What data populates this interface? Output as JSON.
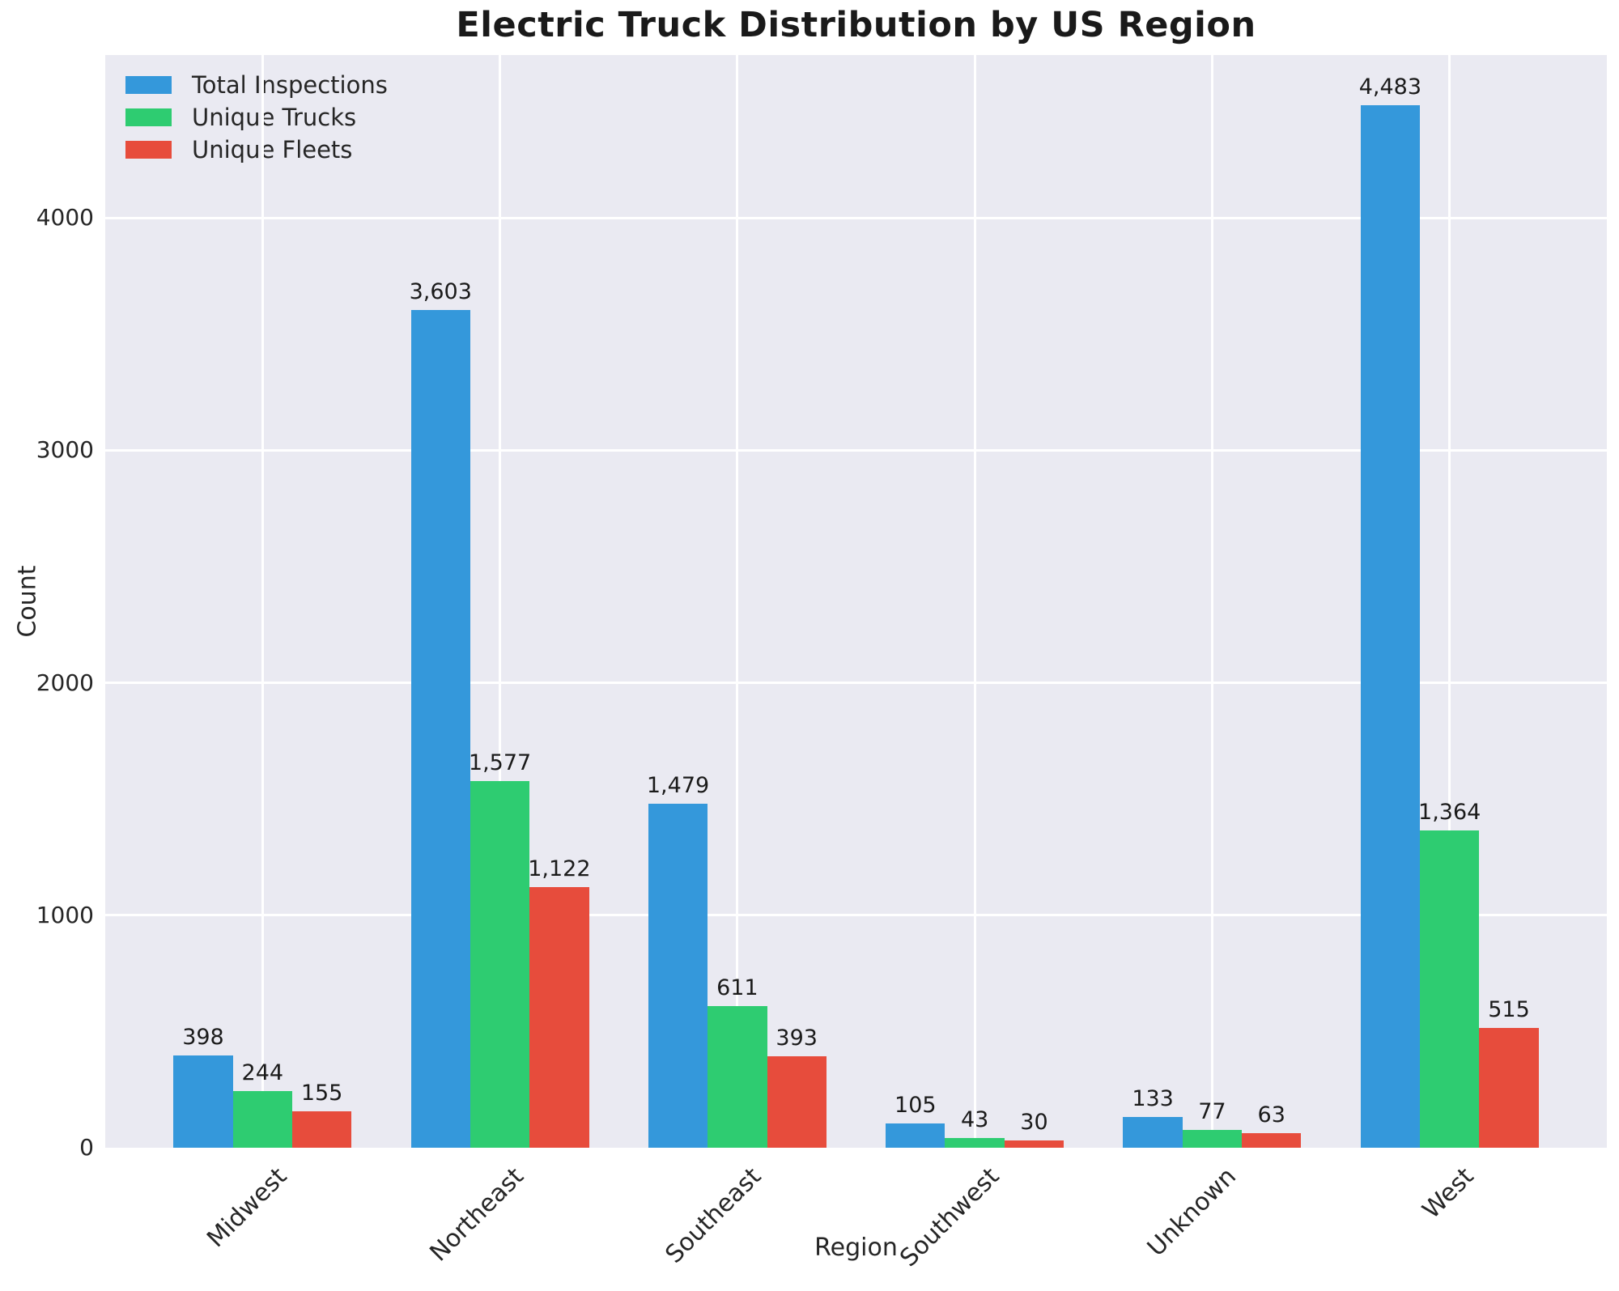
{
  "chart_data": {
    "type": "bar",
    "title": "Electric Truck Distribution by US Region",
    "xlabel": "Region",
    "ylabel": "Count",
    "categories": [
      "Midwest",
      "Northeast",
      "Southeast",
      "Southwest",
      "Unknown",
      "West"
    ],
    "series": [
      {
        "name": "Total Inspections",
        "color": "#3498db",
        "values": [
          398,
          3603,
          1479,
          105,
          133,
          4483
        ]
      },
      {
        "name": "Unique Trucks",
        "color": "#2ecc71",
        "values": [
          244,
          1577,
          611,
          43,
          77,
          1364
        ]
      },
      {
        "name": "Unique Fleets",
        "color": "#e74c3c",
        "values": [
          155,
          1122,
          393,
          30,
          63,
          515
        ]
      }
    ],
    "yticks": [
      0,
      1000,
      2000,
      3000,
      4000
    ],
    "ylim": [
      0,
      4700
    ],
    "grid": true,
    "legend_position": "upper-left",
    "plot_bg_color": "#eaeaf2",
    "grid_color": "#ffffff"
  }
}
